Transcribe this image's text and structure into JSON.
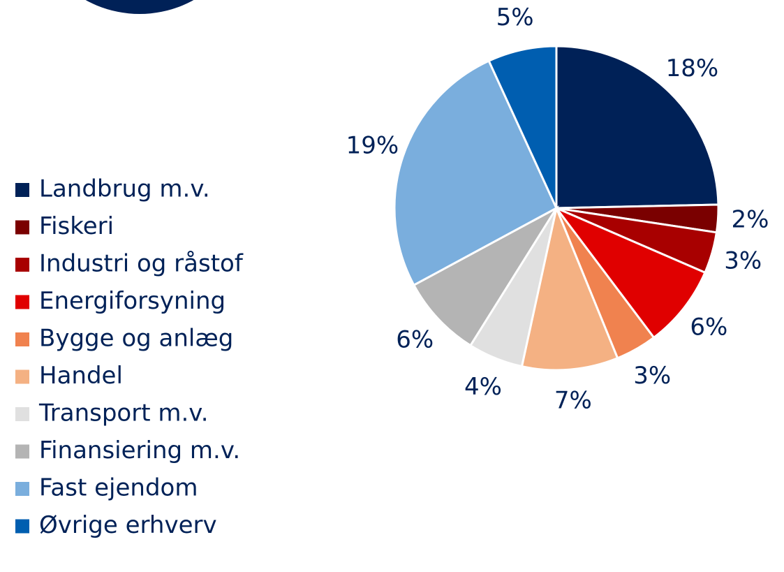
{
  "chart_data": {
    "type": "pie",
    "categories": [
      "Landbrug m.v.",
      "Fiskeri",
      "Industri og råstof",
      "Energiforsyning",
      "Bygge og anlæg",
      "Handel",
      "Transport m.v.",
      "Finansiering m.v.",
      "Fast ejendom",
      "Øvrige erhverv"
    ],
    "values": [
      18,
      2,
      3,
      6,
      3,
      7,
      4,
      6,
      19,
      5
    ],
    "value_labels": [
      "18%",
      "2%",
      "3%",
      "6%",
      "3%",
      "7%",
      "4%",
      "6%",
      "19%",
      "5%"
    ],
    "colors": [
      "#002157",
      "#7a0000",
      "#a80000",
      "#e00000",
      "#f0824f",
      "#f4b183",
      "#e0e0e0",
      "#b4b4b4",
      "#7aaedd",
      "#005eb0"
    ],
    "legend": "left"
  }
}
